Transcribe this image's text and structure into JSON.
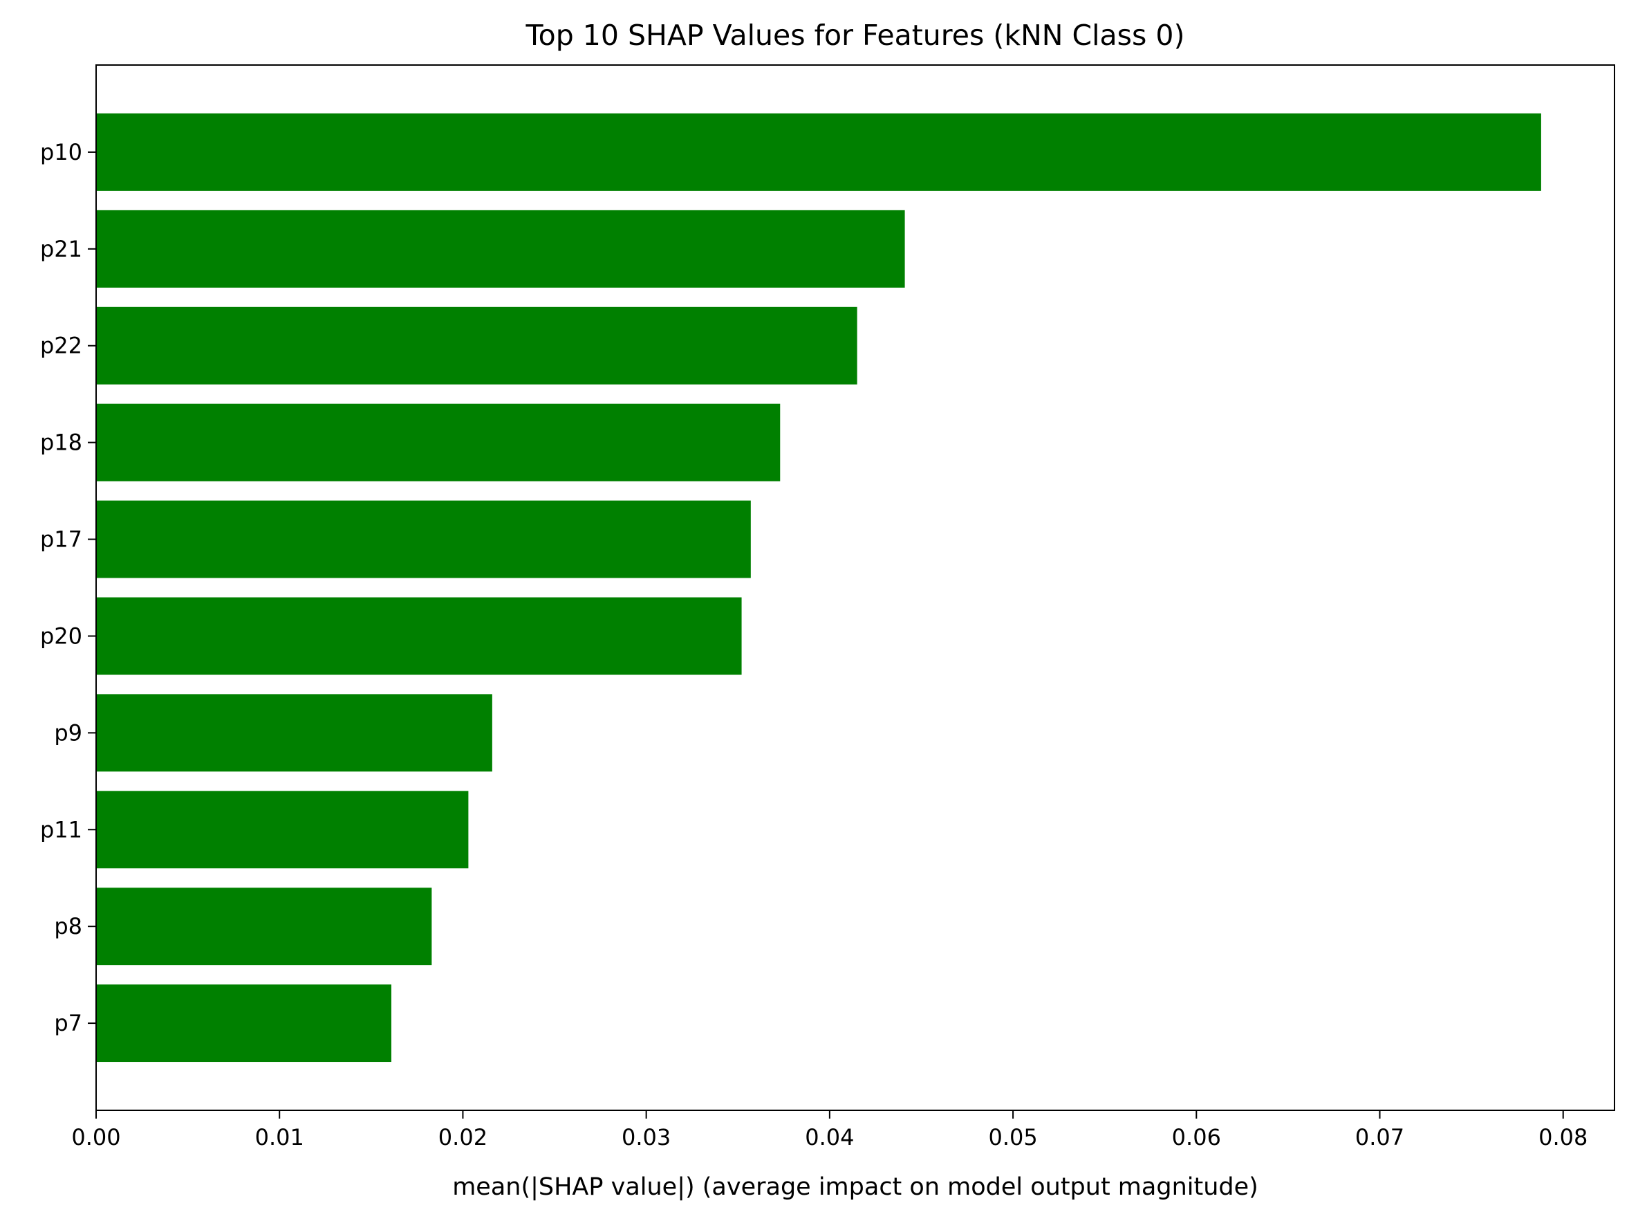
{
  "chart_data": {
    "type": "bar",
    "orientation": "horizontal",
    "title": "Top 10 SHAP Values for Features (kNN Class 0)",
    "xlabel": "mean(|SHAP value|) (average impact on model output magnitude)",
    "ylabel": "",
    "xlim": [
      0.0,
      0.0828
    ],
    "xticks": [
      "0.00",
      "0.01",
      "0.02",
      "0.03",
      "0.04",
      "0.05",
      "0.06",
      "0.07",
      "0.08"
    ],
    "categories": [
      "p10",
      "p21",
      "p22",
      "p18",
      "p17",
      "p20",
      "p9",
      "p11",
      "p8",
      "p7"
    ],
    "values": [
      0.0788,
      0.0441,
      0.0415,
      0.0373,
      0.0357,
      0.0352,
      0.0216,
      0.0203,
      0.0183,
      0.0161
    ],
    "bar_color": "#008000",
    "grid": false,
    "legend": "none"
  }
}
